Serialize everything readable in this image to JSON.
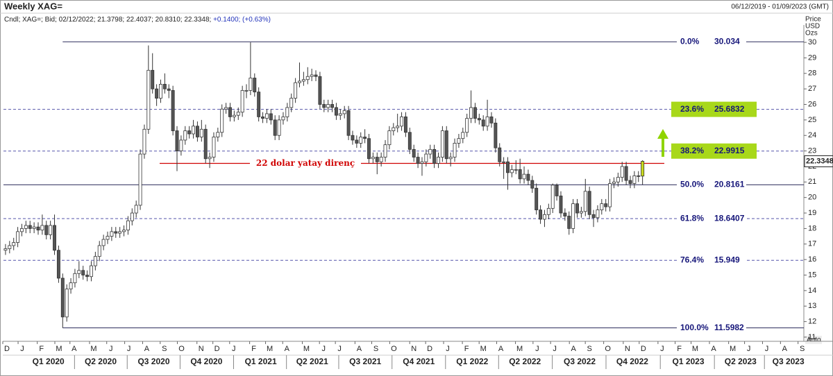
{
  "header": {
    "title": "Weekly XAG=",
    "date_range": "06/12/2019 - 01/09/2023 (GMT)",
    "legend": "Cndl; XAG=; Bid; 02/12/2022; 21.3798; 22.4037; 20.8310; 22.3348;",
    "change": "+0.1400; (+0.63%)",
    "units": [
      "Price",
      "USD",
      "Ozs"
    ],
    "scale_mode": "Auto"
  },
  "chart_data": {
    "type": "candlestick",
    "up_color": "#ffffff",
    "down_color": "#555555",
    "last_color": "#c8d81e",
    "xlim": [
      -0.5,
      195.5
    ],
    "ylim": [
      10.73,
      31.12
    ],
    "yticks": [
      11,
      12,
      13,
      14,
      15,
      16,
      17,
      18,
      19,
      20,
      21,
      22,
      23,
      24,
      25,
      26,
      27,
      28,
      29,
      30
    ],
    "xticks": [
      {
        "value": 0.35,
        "label": "D"
      },
      {
        "value": 4.1,
        "label": "J"
      },
      {
        "value": 8.8,
        "label": "F"
      },
      {
        "value": 13.1,
        "label": "M"
      },
      {
        "value": 16.8,
        "label": "A"
      },
      {
        "value": 21.6,
        "label": "M"
      },
      {
        "value": 25.8,
        "label": "J"
      },
      {
        "value": 30.2,
        "label": "J"
      },
      {
        "value": 34.6,
        "label": "A"
      },
      {
        "value": 38.9,
        "label": "S"
      },
      {
        "value": 43.1,
        "label": "O"
      },
      {
        "value": 47.9,
        "label": "N"
      },
      {
        "value": 51.8,
        "label": "D"
      },
      {
        "value": 55.9,
        "label": "J"
      },
      {
        "value": 60.8,
        "label": "F"
      },
      {
        "value": 64.7,
        "label": "M"
      },
      {
        "value": 68.9,
        "label": "A"
      },
      {
        "value": 73.7,
        "label": "M"
      },
      {
        "value": 77.9,
        "label": "J"
      },
      {
        "value": 81.8,
        "label": "J"
      },
      {
        "value": 86.6,
        "label": "A"
      },
      {
        "value": 90.7,
        "label": "S"
      },
      {
        "value": 95.1,
        "label": "O"
      },
      {
        "value": 100.0,
        "label": "N"
      },
      {
        "value": 103.9,
        "label": "D"
      },
      {
        "value": 108.3,
        "label": "J"
      },
      {
        "value": 112.9,
        "label": "F"
      },
      {
        "value": 117.0,
        "label": "M"
      },
      {
        "value": 121.3,
        "label": "A"
      },
      {
        "value": 125.9,
        "label": "M"
      },
      {
        "value": 130.2,
        "label": "J"
      },
      {
        "value": 134.5,
        "label": "J"
      },
      {
        "value": 139.1,
        "label": "A"
      },
      {
        "value": 143.0,
        "label": "S"
      },
      {
        "value": 147.5,
        "label": "O"
      },
      {
        "value": 152.3,
        "label": "N"
      },
      {
        "value": 156.2,
        "label": "D"
      },
      {
        "value": 160.8,
        "label": "J"
      },
      {
        "value": 165.0,
        "label": "F"
      },
      {
        "value": 168.9,
        "label": "M"
      },
      {
        "value": 173.4,
        "label": "A"
      },
      {
        "value": 178.1,
        "label": "M"
      },
      {
        "value": 182.0,
        "label": "J"
      },
      {
        "value": 186.4,
        "label": "J"
      },
      {
        "value": 190.8,
        "label": "A"
      },
      {
        "value": 195.1,
        "label": "S"
      }
    ],
    "quarter_ticks": [
      {
        "value": 10.5,
        "label": "Q1 2020"
      },
      {
        "value": 23.3,
        "label": "Q2 2020"
      },
      {
        "value": 36.3,
        "label": "Q3 2020"
      },
      {
        "value": 49.2,
        "label": "Q4 2020"
      },
      {
        "value": 62.5,
        "label": "Q1 2021"
      },
      {
        "value": 75.1,
        "label": "Q2 2021"
      },
      {
        "value": 88.1,
        "label": "Q3 2021"
      },
      {
        "value": 101.2,
        "label": "Q4 2021"
      },
      {
        "value": 114.3,
        "label": "Q1 2022"
      },
      {
        "value": 127.2,
        "label": "Q2 2022"
      },
      {
        "value": 140.6,
        "label": "Q3 2022"
      },
      {
        "value": 153.5,
        "label": "Q4 2022"
      },
      {
        "value": 167.2,
        "label": "Q1 2023"
      },
      {
        "value": 180.0,
        "label": "Q2 2023"
      },
      {
        "value": 191.7,
        "label": "Q3 2023"
      }
    ],
    "open": [
      16.6,
      16.7,
      16.9,
      17.1,
      17.8,
      18.0,
      18.2,
      18.0,
      18.1,
      17.9,
      18.2,
      17.6,
      18.2,
      16.6,
      14.8,
      12.3,
      14.1,
      14.5,
      15.1,
      15.3,
      15.0,
      14.9,
      15.6,
      16.2,
      16.9,
      17.3,
      17.5,
      17.8,
      17.7,
      17.8,
      17.9,
      18.5,
      19.0,
      19.5,
      22.8,
      24.4,
      28.2,
      27.0,
      26.4,
      27.3,
      27.0,
      26.9,
      24.3,
      23.0,
      23.7,
      24.3,
      24.1,
      24.6,
      23.9,
      24.4,
      22.5,
      22.6,
      23.9,
      24.2,
      25.7,
      25.8,
      25.2,
      25.3,
      25.5,
      26.9,
      26.9,
      27.7,
      26.8,
      25.2,
      25.1,
      25.4,
      25.0,
      24.0,
      25.0,
      25.2,
      25.8,
      26.4,
      27.4,
      27.5,
      27.6,
      27.8,
      27.9,
      27.8,
      26.0,
      25.8,
      26.0,
      25.8,
      25.3,
      25.4,
      25.6,
      24.0,
      23.7,
      23.5,
      23.9,
      23.8,
      22.5,
      22.6,
      22.3,
      22.6,
      23.4,
      24.3,
      24.5,
      24.6,
      25.2,
      24.2,
      23.1,
      22.6,
      22.2,
      22.3,
      22.8,
      23.1,
      22.2,
      22.6,
      24.3,
      22.5,
      22.6,
      23.5,
      23.8,
      24.2,
      25.1,
      25.8,
      25.1,
      25.0,
      24.6,
      25.2,
      24.8,
      23.2,
      22.3,
      22.3,
      21.6,
      21.8,
      21.8,
      21.2,
      21.5,
      21.1,
      20.6,
      19.2,
      18.6,
      18.9,
      19.3,
      20.8,
      20.1,
      19.0,
      18.8,
      18.0,
      19.6,
      19.0,
      19.1,
      20.4,
      18.9,
      18.7,
      19.2,
      19.6,
      19.4,
      20.9,
      21.0,
      21.3,
      22.0,
      21.1,
      20.9,
      21.4,
      21.3798
    ],
    "high": [
      17.0,
      17.2,
      17.4,
      18.1,
      18.3,
      18.5,
      18.5,
      18.4,
      18.4,
      18.9,
      18.5,
      18.5,
      18.9,
      16.9,
      15.1,
      14.4,
      14.8,
      15.4,
      15.9,
      15.6,
      15.3,
      15.9,
      16.5,
      17.2,
      17.6,
      17.8,
      18.1,
      18.1,
      18.1,
      18.2,
      18.8,
      19.3,
      19.8,
      23.1,
      24.7,
      29.8,
      29.3,
      27.3,
      27.6,
      28.0,
      27.3,
      27.2,
      24.6,
      24.0,
      24.6,
      24.6,
      25.0,
      24.9,
      25.0,
      24.7,
      22.9,
      24.2,
      24.5,
      26.0,
      26.1,
      26.1,
      25.6,
      25.8,
      27.2,
      27.3,
      30.0,
      28.0,
      27.1,
      25.5,
      25.7,
      25.7,
      25.3,
      25.3,
      25.5,
      26.1,
      26.7,
      27.7,
      28.7,
      28.1,
      28.4,
      28.3,
      28.2,
      28.1,
      26.3,
      26.3,
      26.3,
      26.1,
      25.7,
      25.9,
      25.9,
      24.3,
      24.0,
      24.2,
      24.4,
      24.1,
      22.9,
      22.9,
      22.9,
      23.7,
      24.6,
      24.8,
      25.4,
      25.5,
      25.5,
      24.5,
      23.4,
      22.9,
      22.6,
      23.1,
      23.4,
      23.4,
      22.9,
      24.6,
      24.6,
      22.9,
      23.8,
      24.1,
      24.5,
      25.4,
      26.9,
      26.1,
      25.4,
      25.3,
      26.3,
      25.5,
      25.1,
      23.5,
      22.6,
      22.6,
      22.1,
      22.4,
      22.5,
      22.0,
      21.8,
      21.4,
      20.9,
      19.5,
      19.2,
      19.6,
      20.9,
      20.9,
      20.4,
      19.3,
      19.1,
      19.9,
      19.9,
      19.4,
      21.2,
      20.7,
      19.2,
      19.5,
      19.9,
      19.9,
      21.2,
      21.3,
      21.6,
      22.3,
      22.3,
      21.4,
      21.7,
      21.7,
      22.4037
    ],
    "low": [
      16.3,
      16.4,
      16.6,
      16.8,
      17.5,
      17.7,
      17.7,
      17.7,
      17.6,
      17.6,
      17.3,
      17.3,
      16.3,
      14.5,
      11.6,
      12.0,
      13.8,
      14.2,
      14.8,
      14.7,
      14.6,
      14.6,
      15.3,
      15.9,
      16.6,
      17.0,
      17.2,
      17.4,
      17.4,
      17.5,
      17.6,
      18.2,
      18.7,
      19.2,
      22.5,
      24.1,
      26.7,
      25.9,
      26.1,
      26.7,
      26.4,
      24.0,
      21.7,
      22.7,
      23.4,
      23.8,
      23.8,
      23.6,
      23.6,
      22.2,
      21.9,
      22.3,
      23.6,
      23.9,
      25.4,
      24.9,
      24.9,
      25.0,
      25.2,
      26.4,
      26.6,
      26.5,
      24.9,
      24.8,
      24.8,
      24.7,
      23.7,
      23.7,
      24.7,
      24.9,
      25.5,
      26.1,
      27.1,
      27.2,
      27.3,
      27.5,
      27.5,
      25.7,
      25.5,
      25.5,
      25.5,
      25.0,
      25.0,
      25.1,
      23.7,
      23.4,
      23.2,
      23.2,
      23.5,
      22.2,
      22.2,
      21.5,
      22.0,
      22.3,
      23.1,
      24.0,
      24.2,
      24.3,
      23.9,
      22.8,
      22.3,
      21.9,
      21.4,
      22.0,
      22.5,
      21.9,
      21.9,
      22.3,
      22.2,
      22.0,
      22.3,
      23.2,
      23.5,
      23.9,
      24.8,
      24.8,
      24.7,
      24.3,
      24.3,
      24.5,
      22.9,
      22.0,
      21.2,
      20.5,
      21.3,
      21.5,
      20.9,
      20.9,
      20.8,
      20.3,
      18.9,
      18.3,
      18.1,
      18.6,
      19.0,
      19.8,
      18.7,
      18.5,
      17.6,
      17.7,
      18.7,
      18.7,
      18.8,
      18.6,
      18.1,
      18.4,
      18.9,
      19.1,
      19.1,
      20.6,
      20.7,
      21.0,
      20.8,
      20.6,
      20.6,
      21.0,
      20.831
    ],
    "close": [
      16.7,
      16.9,
      17.1,
      17.8,
      18.0,
      18.2,
      18.0,
      18.1,
      17.9,
      18.2,
      17.6,
      18.2,
      16.6,
      14.8,
      12.3,
      14.1,
      14.5,
      15.1,
      15.3,
      15.0,
      14.9,
      15.6,
      16.2,
      16.9,
      17.3,
      17.5,
      17.8,
      17.7,
      17.8,
      17.9,
      18.5,
      19.0,
      19.5,
      22.8,
      24.4,
      28.2,
      27.0,
      26.4,
      27.3,
      27.0,
      26.9,
      24.3,
      23.0,
      23.7,
      24.3,
      24.1,
      24.6,
      23.9,
      24.4,
      22.5,
      22.6,
      23.9,
      24.2,
      25.7,
      25.8,
      25.2,
      25.3,
      25.5,
      26.9,
      26.9,
      27.7,
      26.8,
      25.2,
      25.1,
      25.4,
      25.0,
      24.0,
      25.0,
      25.2,
      25.8,
      26.4,
      27.4,
      27.5,
      27.6,
      27.8,
      27.9,
      27.8,
      26.0,
      25.8,
      26.0,
      25.8,
      25.3,
      25.4,
      25.6,
      24.0,
      23.7,
      23.5,
      23.9,
      23.8,
      22.5,
      22.6,
      22.3,
      22.6,
      23.4,
      24.3,
      24.5,
      24.6,
      25.2,
      24.2,
      23.1,
      22.6,
      22.2,
      22.3,
      22.8,
      23.1,
      22.2,
      22.6,
      24.3,
      22.5,
      22.6,
      23.5,
      23.8,
      24.2,
      25.1,
      25.8,
      25.1,
      25.0,
      24.6,
      25.2,
      24.8,
      23.2,
      22.3,
      22.3,
      21.6,
      21.8,
      21.8,
      21.2,
      21.5,
      21.1,
      20.6,
      19.2,
      18.6,
      18.9,
      19.3,
      20.8,
      20.1,
      19.0,
      18.8,
      18.0,
      19.6,
      19.0,
      19.1,
      20.4,
      18.9,
      18.7,
      19.2,
      19.6,
      19.4,
      20.9,
      21.0,
      21.3,
      22.0,
      21.1,
      20.9,
      21.4,
      21.38,
      22.3348
    ],
    "fib_levels": [
      {
        "level": "0.0%",
        "value": 30.034,
        "style": "solid"
      },
      {
        "level": "23.6%",
        "value": 25.6832,
        "style": "dashed",
        "highlight": true
      },
      {
        "level": "38.2%",
        "value": 22.9915,
        "style": "dashed",
        "highlight": true
      },
      {
        "level": "50.0%",
        "value": 20.8161,
        "style": "solid"
      },
      {
        "level": "61.8%",
        "value": 18.6407,
        "style": "dashed"
      },
      {
        "level": "76.4%",
        "value": 15.949,
        "style": "dashed"
      },
      {
        "level": "100.0%",
        "value": 11.5982,
        "style": "solid"
      }
    ],
    "annotation": {
      "text": "22 dolar yatay direnç",
      "value": 22.2,
      "color": "#d00000"
    },
    "highlight_color": "#a8d81a"
  }
}
